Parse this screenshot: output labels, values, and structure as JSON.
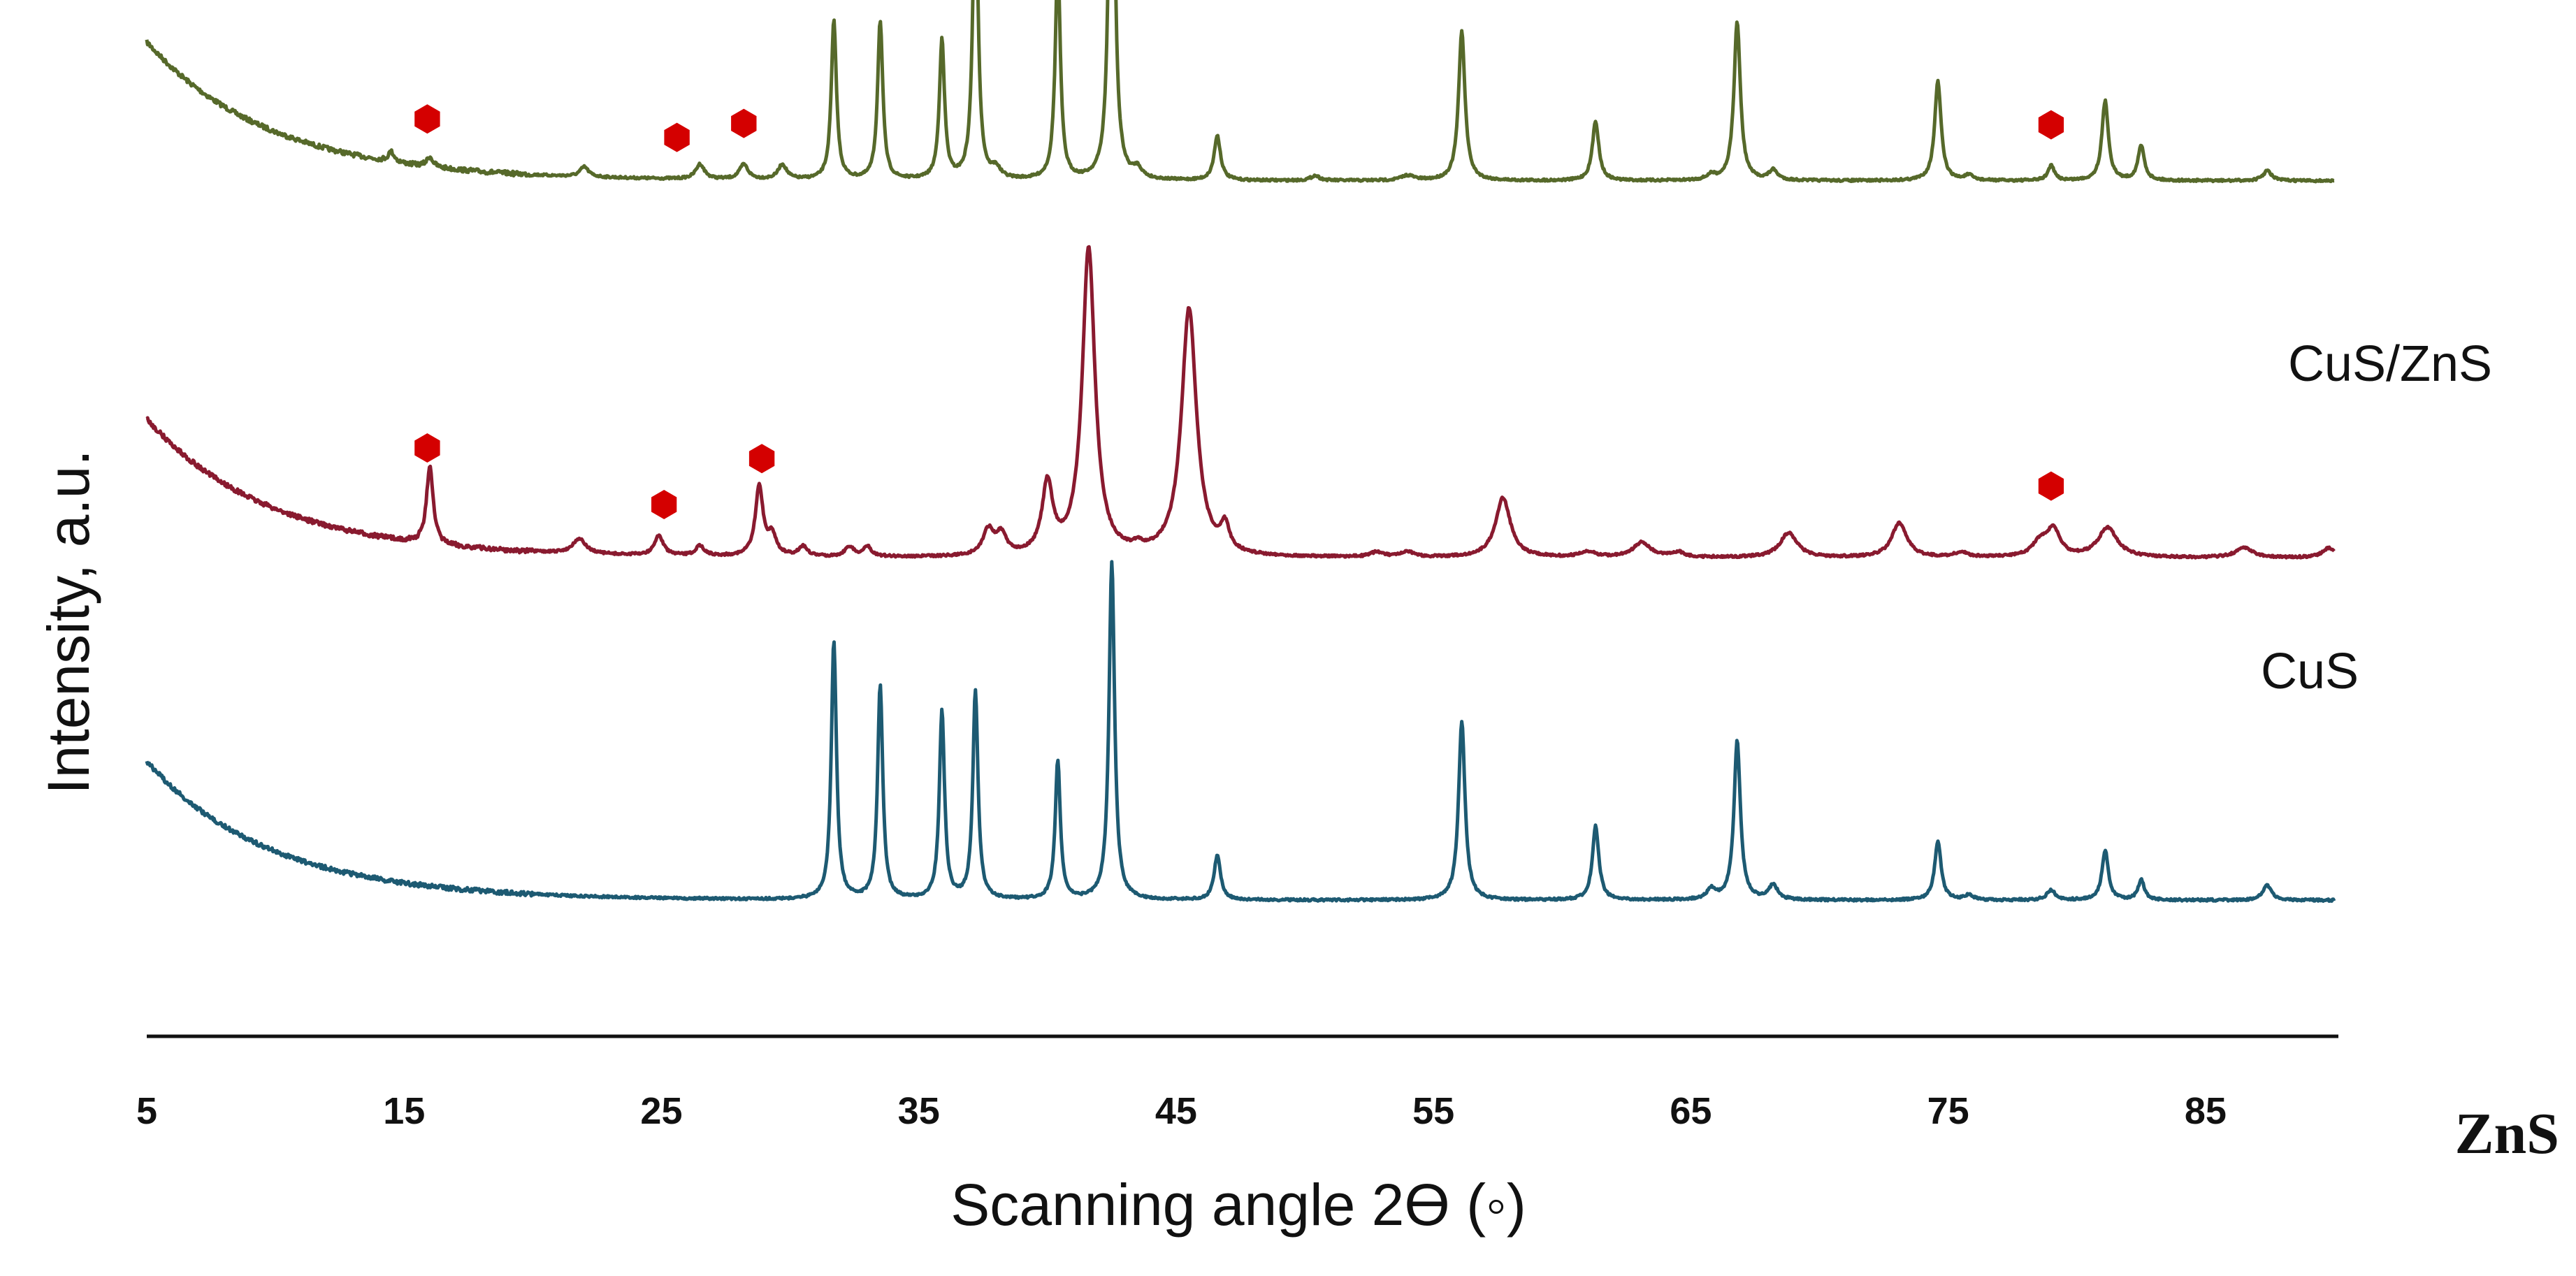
{
  "chart_data": {
    "type": "line",
    "xlabel": "Scanning angle 2ϴ (◦)",
    "ylabel": "Intensity, a.u.",
    "xlim": [
      5,
      90
    ],
    "xticks": [
      5,
      15,
      25,
      35,
      45,
      55,
      65,
      75,
      85
    ],
    "grid": false,
    "legend": "none",
    "corner_label": "ZnS",
    "marker_color": "#d40000",
    "series": [
      {
        "name": "CuS/ZnS",
        "color": "#56692a",
        "baseline": 14,
        "decay_amp": 14,
        "peaks": [
          [
            14.5,
            1,
            0.15
          ],
          [
            16,
            1,
            0.15
          ],
          [
            22,
            1,
            0.2
          ],
          [
            26.5,
            1.5,
            0.2
          ],
          [
            28.2,
            1.5,
            0.2
          ],
          [
            29.7,
            1.5,
            0.2
          ],
          [
            31.7,
            16,
            0.12
          ],
          [
            33.5,
            16,
            0.12
          ],
          [
            35.9,
            14,
            0.12
          ],
          [
            37.2,
            31,
            0.12
          ],
          [
            38,
            1,
            0.2
          ],
          [
            40.4,
            22,
            0.12
          ],
          [
            42.5,
            51,
            0.12
          ],
          [
            43.5,
            1,
            0.2
          ],
          [
            46.6,
            4.5,
            0.15
          ],
          [
            50.4,
            0.5,
            0.2
          ],
          [
            54,
            0.5,
            0.3
          ],
          [
            56.1,
            15,
            0.15
          ],
          [
            61.3,
            6,
            0.15
          ],
          [
            65.8,
            0.5,
            0.2
          ],
          [
            66.8,
            16,
            0.15
          ],
          [
            68.2,
            1,
            0.2
          ],
          [
            74.6,
            10,
            0.15
          ],
          [
            75.8,
            0.5,
            0.2
          ],
          [
            79,
            1.5,
            0.15
          ],
          [
            81.1,
            8,
            0.15
          ],
          [
            82.5,
            3.5,
            0.15
          ],
          [
            87.4,
            1,
            0.2
          ]
        ],
        "stars": [
          15.9,
          25.6,
          28.2,
          79
        ]
      },
      {
        "name": "CuS",
        "color": "#891a2f",
        "baseline": 52,
        "decay_amp": 14,
        "peaks": [
          [
            16,
            8,
            0.15
          ],
          [
            21.8,
            1.5,
            0.3
          ],
          [
            24.9,
            2,
            0.2
          ],
          [
            26.5,
            1,
            0.2
          ],
          [
            28.8,
            7,
            0.18
          ],
          [
            29.3,
            2,
            0.2
          ],
          [
            30.5,
            1,
            0.2
          ],
          [
            32.3,
            1,
            0.2
          ],
          [
            33,
            1,
            0.2
          ],
          [
            37.7,
            2.5,
            0.25
          ],
          [
            38.2,
            2,
            0.25
          ],
          [
            40,
            7,
            0.25
          ],
          [
            41.6,
            31,
            0.3
          ],
          [
            43.5,
            0.5,
            0.2
          ],
          [
            45.5,
            25,
            0.35
          ],
          [
            46.9,
            2.5,
            0.2
          ],
          [
            52.8,
            0.5,
            0.3
          ],
          [
            54,
            0.5,
            0.3
          ],
          [
            57.7,
            6,
            0.35
          ],
          [
            61,
            0.5,
            0.4
          ],
          [
            63.1,
            1.5,
            0.4
          ],
          [
            64.5,
            0.5,
            0.3
          ],
          [
            68.8,
            2.5,
            0.4
          ],
          [
            73.1,
            3.5,
            0.35
          ],
          [
            75.5,
            0.5,
            0.3
          ],
          [
            78.6,
            1.5,
            0.4
          ],
          [
            79.1,
            2.5,
            0.3
          ],
          [
            81.2,
            3,
            0.45
          ],
          [
            86.5,
            1,
            0.4
          ],
          [
            89.8,
            1,
            0.3
          ]
        ],
        "stars": [
          15.9,
          25.1,
          28.9,
          79
        ]
      },
      {
        "name": "ZnS",
        "color": "#1d5a72",
        "baseline": 86.5,
        "decay_amp": 14,
        "peaks": [
          [
            31.7,
            26,
            0.12
          ],
          [
            33.5,
            21.5,
            0.12
          ],
          [
            35.9,
            19,
            0.12
          ],
          [
            37.2,
            21,
            0.12
          ],
          [
            40.4,
            14,
            0.12
          ],
          [
            42.5,
            34,
            0.13
          ],
          [
            46.6,
            4.5,
            0.15
          ],
          [
            56.1,
            18,
            0.15
          ],
          [
            61.3,
            7.5,
            0.15
          ],
          [
            65.8,
            1,
            0.2
          ],
          [
            66.8,
            16,
            0.15
          ],
          [
            68.2,
            1.5,
            0.2
          ],
          [
            74.6,
            6,
            0.15
          ],
          [
            75.8,
            0.5,
            0.2
          ],
          [
            79,
            1,
            0.2
          ],
          [
            81.1,
            5,
            0.15
          ],
          [
            82.5,
            2,
            0.15
          ],
          [
            87.4,
            1.5,
            0.2
          ]
        ],
        "stars": []
      }
    ]
  }
}
